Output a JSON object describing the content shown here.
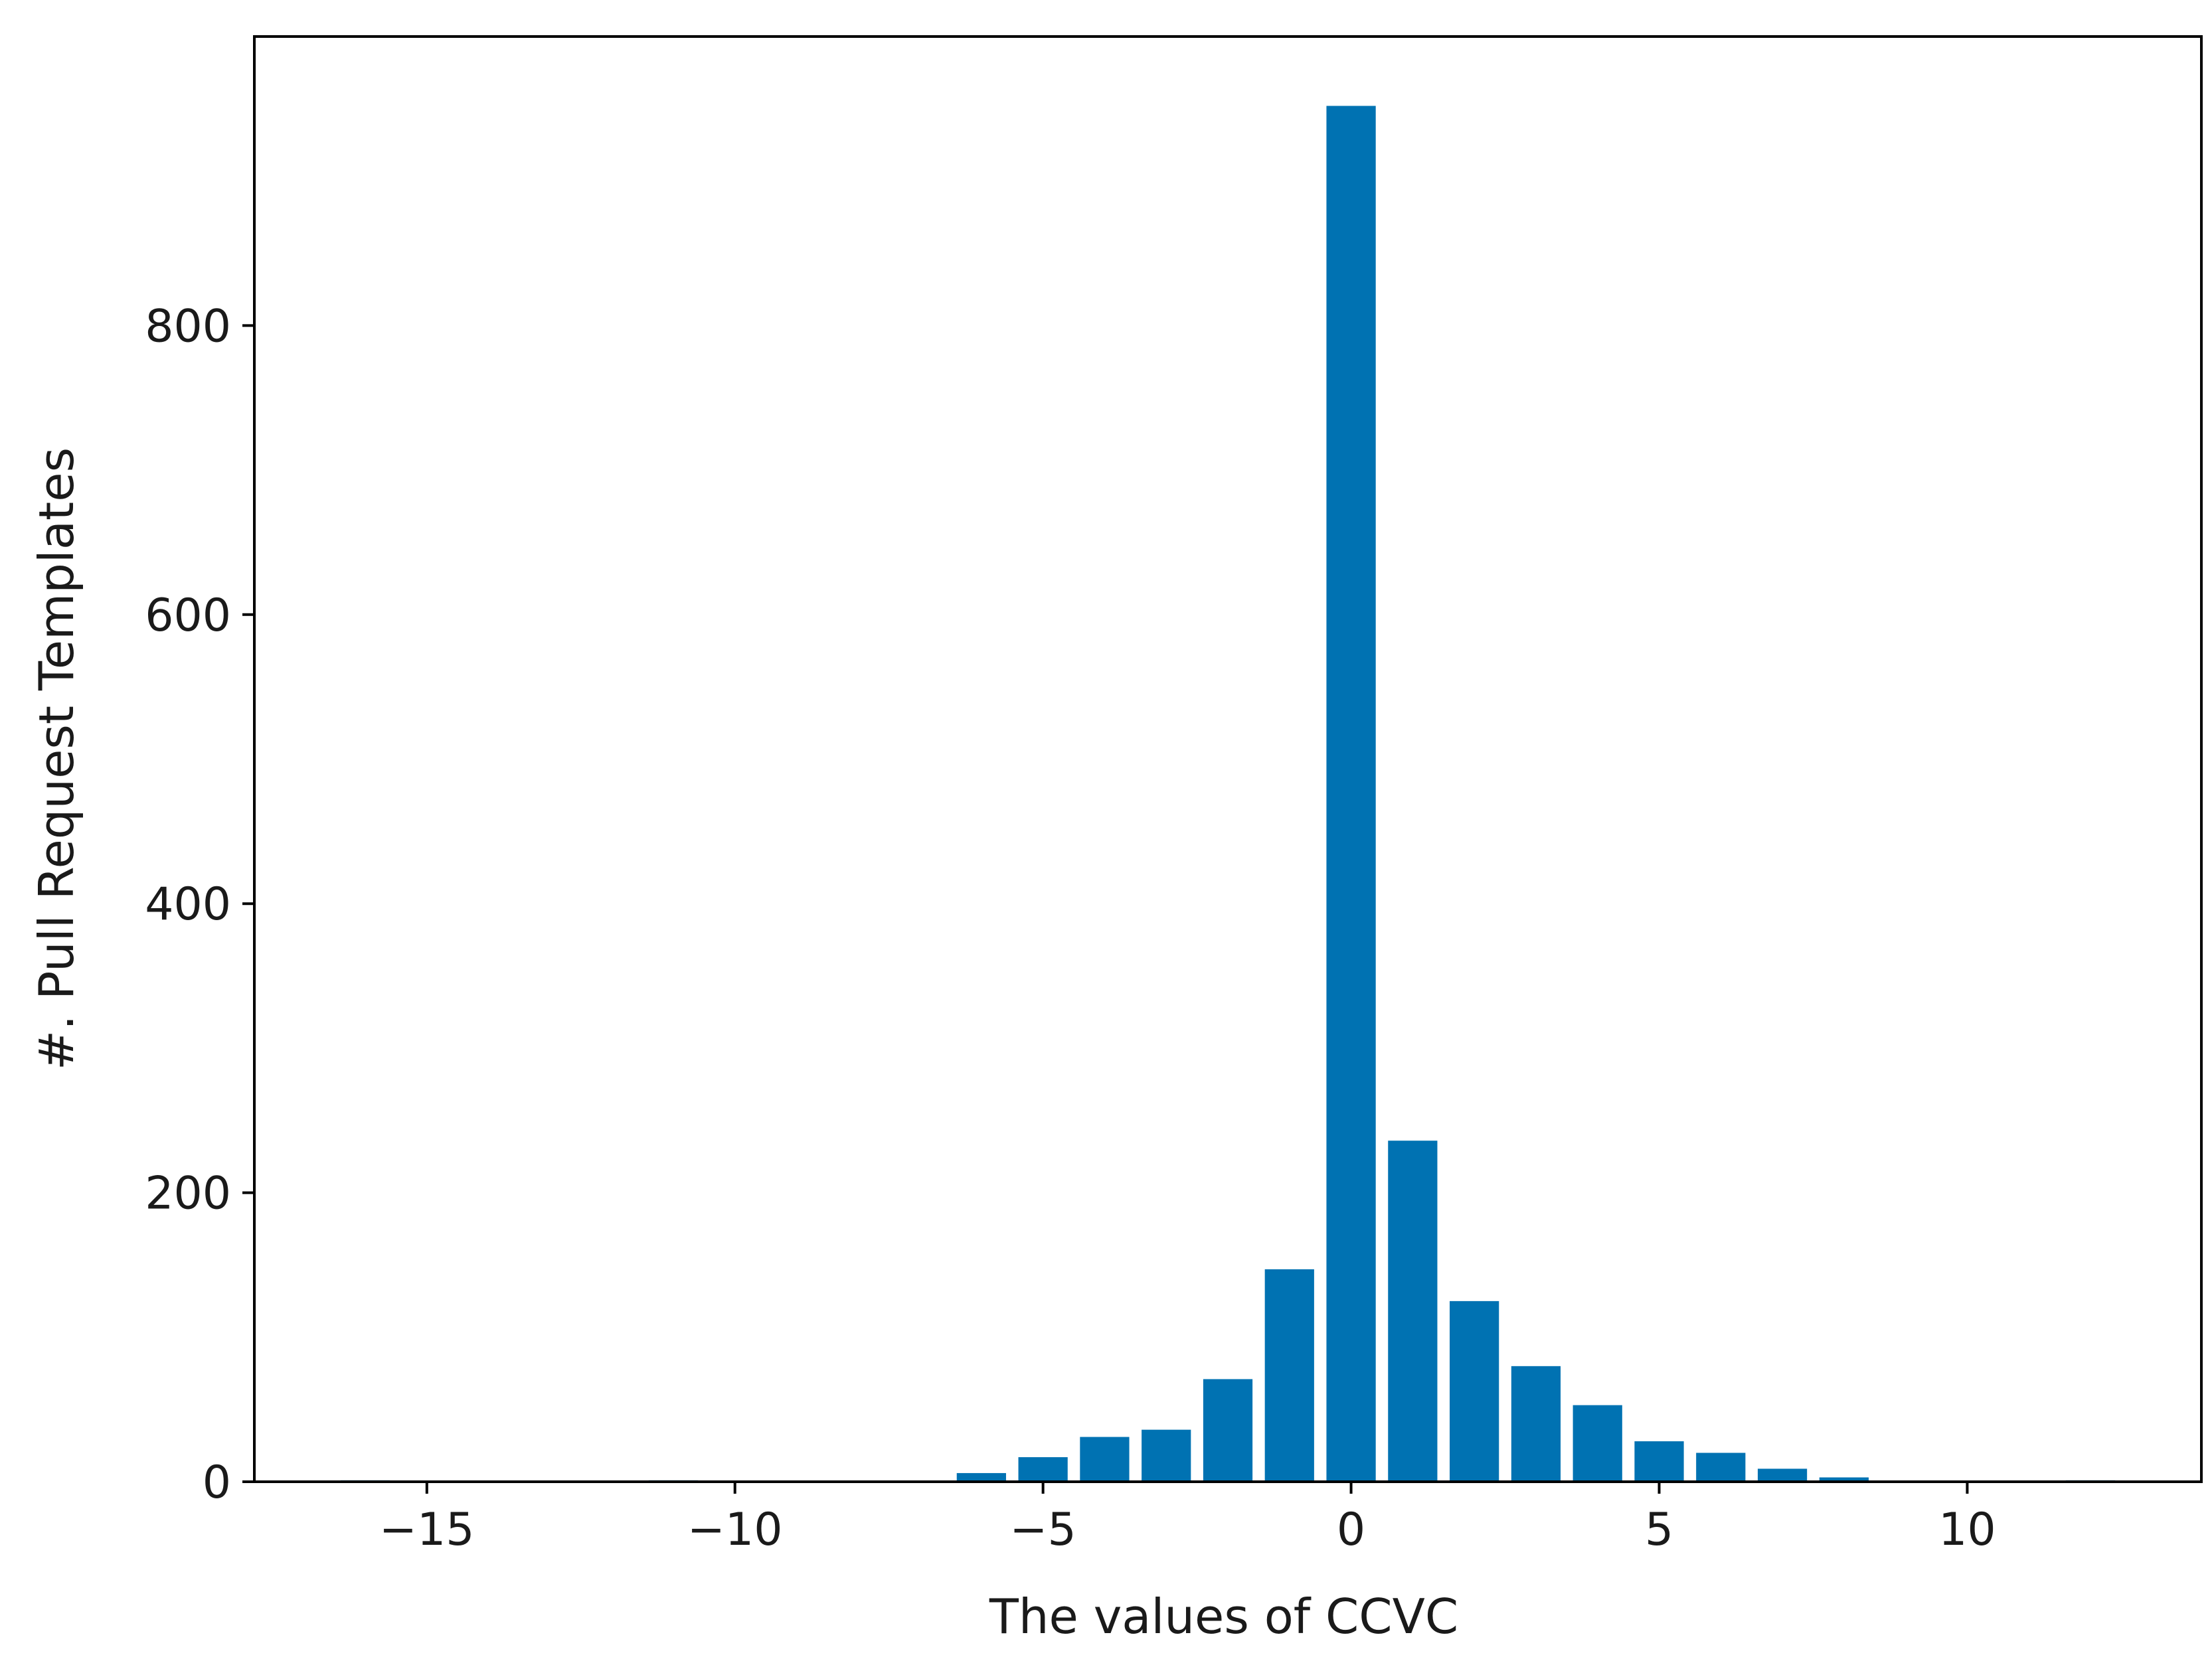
{
  "chart_data": {
    "type": "bar",
    "xlabel": "The values of CCVC",
    "ylabel": "#. Pull Request Templates",
    "x_range": [
      -17.8,
      13.8
    ],
    "y_range": [
      0,
      1000
    ],
    "x_ticks": [
      -15,
      -10,
      -5,
      0,
      5,
      10
    ],
    "x_tick_labels": [
      "−15",
      "−10",
      "−5",
      "0",
      "5",
      "10"
    ],
    "y_ticks": [
      0,
      200,
      400,
      600,
      800
    ],
    "y_tick_labels": [
      "0",
      "200",
      "400",
      "600",
      "800"
    ],
    "grid": false,
    "bar_color": "#0072b2",
    "series": [
      {
        "x": [
          -16,
          -11,
          -6,
          -5,
          -4,
          -3,
          -2,
          -1,
          0,
          1,
          2,
          3,
          4,
          5,
          6,
          7,
          8,
          12
        ],
        "values": [
          1,
          1,
          6,
          17,
          31,
          36,
          71,
          147,
          952,
          236,
          125,
          80,
          53,
          28,
          20,
          9,
          3,
          1
        ]
      }
    ]
  }
}
